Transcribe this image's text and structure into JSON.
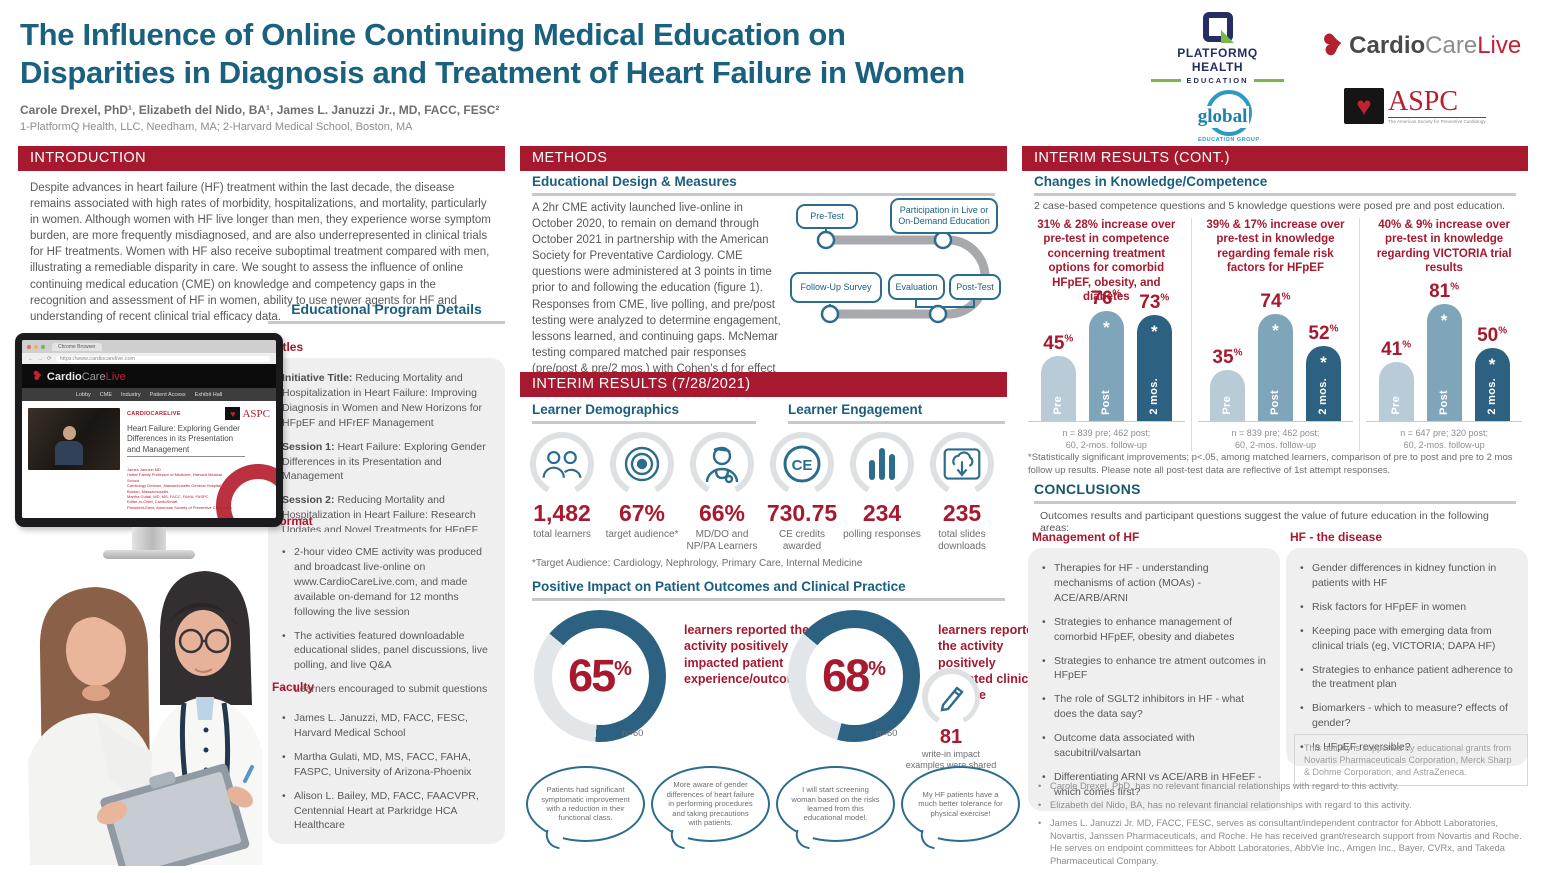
{
  "header": {
    "title_line1": "The Influence of Online Continuing Medical Education on",
    "title_line2": "Disparities in Diagnosis and Treatment of Heart Failure in Women",
    "authors": "Carole Drexel, PhD¹, Elizabeth del Nido, BA¹, James L. Januzzi Jr., MD, FACC, FESC²",
    "affiliations": "1-PlatformQ Health, LLC, Needham, MA; 2-Harvard Medical School, Boston, MA"
  },
  "logos": {
    "platformq_line1": "PLATFORMQ HEALTH",
    "platformq_line2": "EDUCATION",
    "cardio_part1": "Cardio",
    "cardio_part2": "Care",
    "cardio_part3": "Live",
    "global_word": "global",
    "global_sub": "EDUCATION GROUP",
    "aspc": "ASPC",
    "aspc_tagline": "The American Society for Preventive Cardiology"
  },
  "sections": {
    "introduction": "INTRODUCTION",
    "methods": "METHODS",
    "interim": "INTERIM RESULTS (7/28/2021)",
    "interim_cont": "INTERIM RESULTS (CONT.)",
    "conclusions": "CONCLUSIONS"
  },
  "introduction": {
    "body": "Despite advances in heart failure (HF) treatment within the last decade, the disease remains associated with high rates of morbidity, hospitalizations, and mortality, particularly in women. Although women with HF live longer than men, they experience worse symptom burden, are more frequently misdiagnosed, and are also underrepresented in clinical trials for HF treatments. Women with HF also receive suboptimal treatment compared with men, illustrating a remediable disparity in care. We sought to assess the influence of online continuing medical education (CME) on knowledge and competency gaps in the recognition and assessment of HF in women, ability to use newer agents for HF and understanding of recent clinical trial efficacy data."
  },
  "program": {
    "heading": "Educational Program Details",
    "titles_label": "Titles",
    "titles": [
      {
        "label": "Initiative Title:",
        "text": " Reducing Mortality and Hospitalization in Heart Failure: Improving Diagnosis in Women and New Horizons for HFpEF and HFrEF Management"
      },
      {
        "label": "Session 1:",
        "text": " Heart Failure: Exploring Gender Differences in its Presentation and Management"
      },
      {
        "label": "Session 2:",
        "text": " Reducing Mortality and Hospitalization in Heart Failure: Research Updates and Novel Treatments for HFpEF and HFrEF"
      }
    ],
    "format_label": "Format",
    "format_items": [
      "2-hour video CME activity was produced and broadcast live-online on www.CardioCareLive.com, and made available on-demand for 12 months following the live session",
      "The activities featured downloadable educational slides, panel discussions, live polling, and live Q&A",
      "Learners encouraged to submit questions before and during the live program"
    ],
    "faculty_label": "Faculty",
    "faculty_items": [
      "James L. Januzzi, MD, FACC, FESC, Harvard Medical School",
      "Martha Gulati, MD, MS, FACC, FAHA, FASPC, University of Arizona-Phoenix",
      "Alison L. Bailey, MD, FACC, FAACVPR, Centennial Heart at Parkridge HCA Healthcare"
    ]
  },
  "monitor": {
    "browser_tab": "Chrome Browser",
    "url": "https://www.cardiocarelive.com",
    "brand1": "Cardio",
    "brand2": "Care",
    "brand3": "Live",
    "nav": [
      "Lobby",
      "CME",
      "Industry",
      "Patient Access",
      "Exhibit Hall"
    ],
    "mini_brand": "CARDIOCARELIVE",
    "mini_aspc": "ASPC",
    "page_title": "Heart Failure: Exploring Gender Differences in its Presentation and Management",
    "speakers": "James Januzzi MD\nHutter Family Professor of Medicine, Harvard Medical School\nCardiology Division, Massachusetts General Hospital\nBoston, Massachusetts\nMartha Gulati, MD, MS, FACC, FAHA, FASPC\nEditor-in-Chief, CardioSmart\nPresident-Elect, American Society of Preventive Cardiology"
  },
  "methods": {
    "heading": "Educational Design & Measures",
    "body": "A 2hr CME activity launched live-online in October 2020, to remain on demand through October 2021 in partnership with the American Society for Preventative Cardiology. CME questions were administered at 3 points in time prior to and following the education (figure 1). Responses from CME, live polling, and pre/post testing were analyzed to determine engagement, lessons learned, and continuing gaps. McNemar testing compared matched pair responses (pre/post & pre/2 mos.) with Cohen's d for effect size.",
    "flow": {
      "pre_test": "Pre-Test",
      "participation": "Participation in Live or On-Demand Education",
      "follow_up": "Follow-Up Survey",
      "evaluation": "Evaluation",
      "post_test": "Post-Test"
    }
  },
  "interim": {
    "demographics_heading": "Learner Demographics",
    "engagement_heading": "Learner Engagement",
    "stats": [
      {
        "value": "1,482",
        "label": "total learners"
      },
      {
        "value": "67%",
        "label": "target audience*"
      },
      {
        "value": "66%",
        "label": "MD/DO and NP/PA Learners"
      },
      {
        "value": "730.75",
        "label": "CE credits awarded"
      },
      {
        "value": "234",
        "label": "polling responses"
      },
      {
        "value": "235",
        "label": "total slides downloads"
      }
    ],
    "target_note": "*Target Audience: Cardiology, Nephrology, Primary Care, Internal Medicine",
    "impact_heading": "Positive Impact on Patient Outcomes and Clinical Practice",
    "donuts": [
      {
        "pct": 65,
        "value": "65",
        "caption": "learners reported the activity positively impacted patient experience/outcomes",
        "n": "n=60"
      },
      {
        "pct": 68,
        "value": "68",
        "caption": "learners reported the activity positively impacted clinical practice",
        "n": "n=60"
      }
    ],
    "writein_value": "81",
    "writein_label": "write-in impact examples were shared",
    "quotes": [
      "Patients had significant symptomatic improvement with a reduction in their functional class.",
      "More aware of gender differences of heart failure in performing procedures and taking precautions with patients.",
      "I will start screening woman based on the risks learned from this educational model.",
      "My HF patients have a much better tolerance for physical exercise!"
    ]
  },
  "knowledge": {
    "heading": "Changes in Knowledge/Competence",
    "intro": "2 case-based competence questions and 5 knowledge questions were posed pre and post education.",
    "footnote": "*Statistically significant improvements; p<.05, among matched learners, comparison of pre to post and pre to 2 mos follow up results. Please note all post-test data are reflective of 1st attempt responses."
  },
  "chart_data": [
    {
      "type": "bar",
      "headline": "31% & 28% increase over pre-test in competence concerning treatment options for comorbid HFpEF, obesity, and diabetes",
      "categories": [
        "Pre",
        "Post",
        "2 mos."
      ],
      "values": [
        45,
        76,
        73
      ],
      "significant": [
        false,
        true,
        true
      ],
      "bar_colors": [
        "#B9CBD6",
        "#7FA5BB",
        "#2D6182"
      ],
      "ylim": [
        0,
        100
      ],
      "n_note_line1": "n = 839 pre; 462 post;",
      "n_note_line2": "60, 2-mos. follow-up"
    },
    {
      "type": "bar",
      "headline": "39% & 17% increase over pre-test in knowledge regarding female risk factors for HFpEF",
      "categories": [
        "Pre",
        "Post",
        "2 mos."
      ],
      "values": [
        35,
        74,
        52
      ],
      "significant": [
        false,
        true,
        true
      ],
      "bar_colors": [
        "#B9CBD6",
        "#7FA5BB",
        "#2D6182"
      ],
      "ylim": [
        0,
        100
      ],
      "n_note_line1": "n = 839 pre; 462 post;",
      "n_note_line2": "60, 2-mos. follow-up"
    },
    {
      "type": "bar",
      "headline": "40% & 9% increase over pre-test in knowledge regarding VICTORIA trial results",
      "categories": [
        "Pre",
        "Post",
        "2 mos."
      ],
      "values": [
        41,
        81,
        50
      ],
      "significant": [
        false,
        true,
        true
      ],
      "bar_colors": [
        "#B9CBD6",
        "#7FA5BB",
        "#2D6182"
      ],
      "ylim": [
        0,
        100
      ],
      "n_note_line1": "n = 647 pre; 320 post;",
      "n_note_line2": "60, 2-mos. follow-up"
    }
  ],
  "conclusions": {
    "intro": "Outcomes results and participant questions suggest the value of future education in the following areas:",
    "management_label": "Management of HF",
    "management_items": [
      "Therapies for HF - understanding mechanisms of action (MOAs) - ACE/ARB/ARNI",
      "Strategies to enhance management of comorbid HFpEF, obesity and diabetes",
      "Strategies to enhance tre atment outcomes in HFpEF",
      "The role of SGLT2 inhibitors in HF - what does the data say?",
      "Outcome data associated with sacubitril/valsartan",
      "Differentiating ARNI vs ACE/ARB in HFeEF - which comes first?"
    ],
    "disease_label": "HF - the disease",
    "disease_items": [
      "Gender differences in kidney function in patients with HF",
      "Risk factors for HFpEF in women",
      "Keeping pace with emerging data from clinical trials (eg, VICTORIA; DAPA HF)",
      "Strategies to enhance patient adherence to the treatment plan",
      "Biomarkers - which to measure? effects of gender?",
      "Is HFpEF reversible?"
    ],
    "support_note": "This activity is supported by educational grants from Novartis Pharmaceuticals Corporation, Merck Sharp & Dohme Corporation, and AstraZeneca."
  },
  "disclosures": [
    "Carole Drexel, PhD, has no relevant financial relationships with regard to this activity.",
    "Elizabeth del Nido, BA, has no relevant financial relationships with regard to this activity.",
    "James L. Januzzi Jr. MD, FACC, FESC, serves as consultant/independent contractor for Abbott Laboratories, Novartis, Janssen Pharmaceuticals, and Roche. He has received grant/research support from Novartis and Roche. He serves on endpoint committees for Abbott Laboratories, AbbVie Inc., Amgen Inc., Bayer, CVRx, and Takeda Pharmaceutical Company."
  ],
  "colors": {
    "accent_red": "#A6192E",
    "heading_teal": "#1A5E7E",
    "icon_teal": "#2C6C8C",
    "bar_pre": "#B9CBD6",
    "bar_post": "#7FA5BB",
    "bar_2mos": "#2D6182"
  }
}
